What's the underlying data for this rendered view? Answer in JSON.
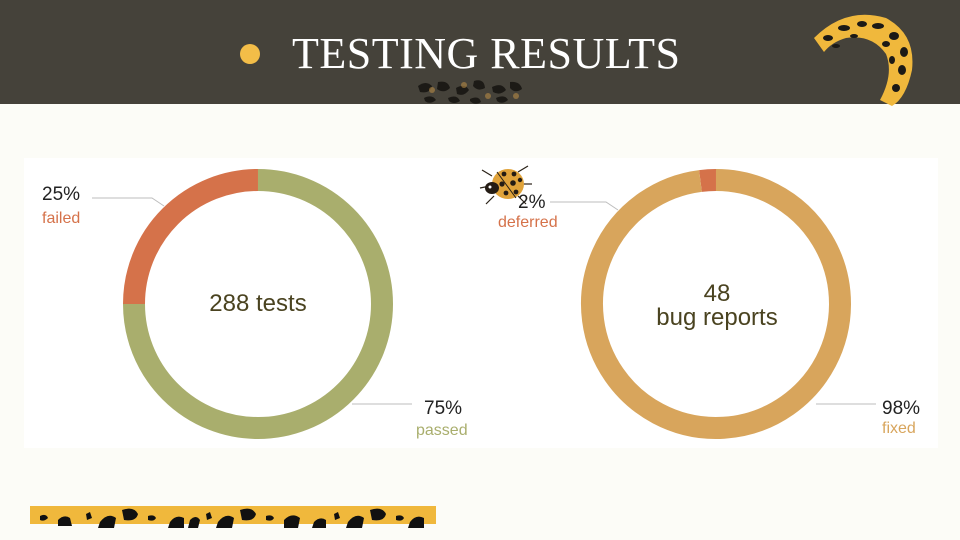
{
  "slide": {
    "title": "TESTING RESULTS",
    "colors": {
      "header_bg": "#45423a",
      "bullet": "#f3bd48",
      "failed": "#d5724a",
      "passed": "#a9ae6d",
      "deferred": "#d5724a",
      "fixed": "#d8a55c",
      "leopard_gold": "#f0b83c"
    }
  },
  "chart_data": [
    {
      "type": "pie",
      "donut": true,
      "center_text": "288 tests",
      "slices": [
        {
          "label": "failed",
          "percent_text": "25%",
          "value": 25,
          "color": "#d5724a"
        },
        {
          "label": "passed",
          "percent_text": "75%",
          "value": 75,
          "color": "#a9ae6d"
        }
      ]
    },
    {
      "type": "pie",
      "donut": true,
      "center_text_line1": "48",
      "center_text_line2": "bug reports",
      "slices": [
        {
          "label": "deferred",
          "percent_text": "2%",
          "value": 2,
          "color": "#d5724a"
        },
        {
          "label": "fixed",
          "percent_text": "98%",
          "value": 98,
          "color": "#d8a55c"
        }
      ]
    }
  ]
}
